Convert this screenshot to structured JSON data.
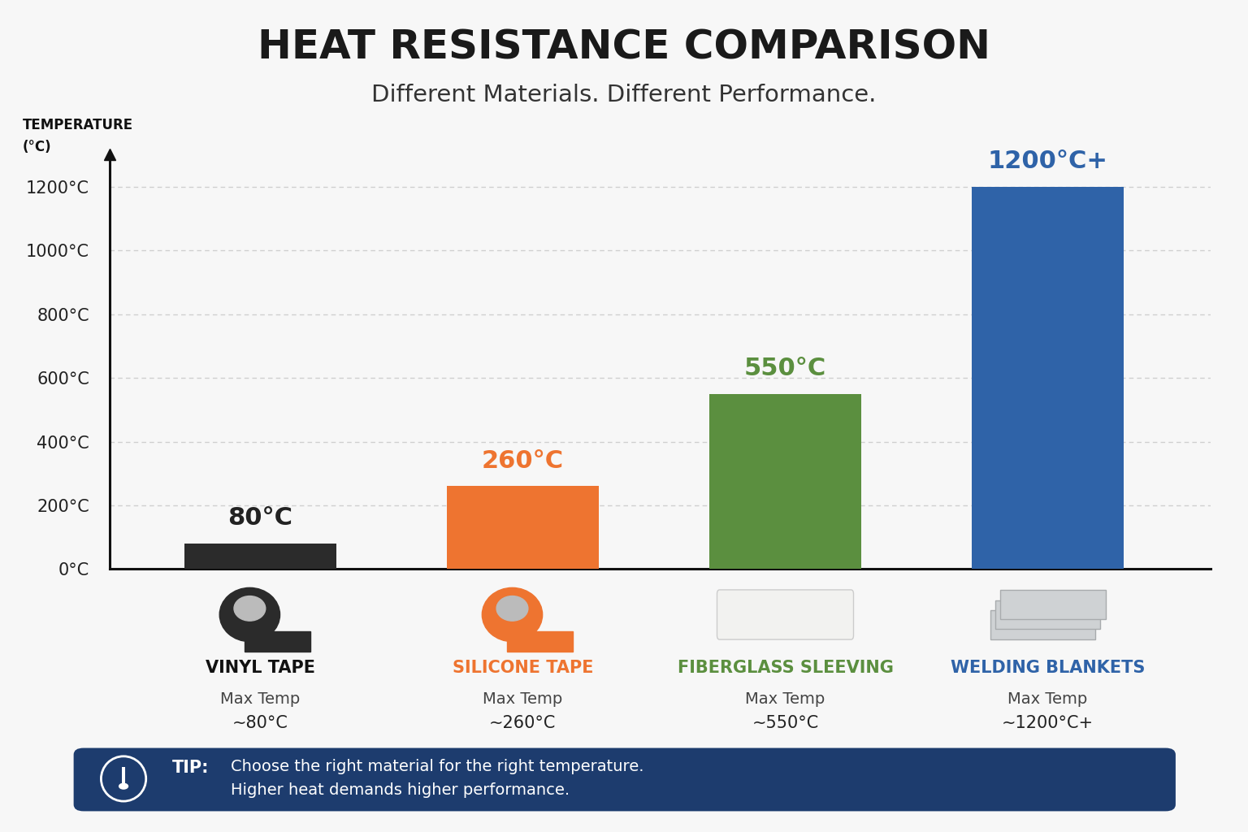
{
  "chart_data": {
    "type": "bar",
    "title": "HEAT RESISTANCE COMPARISON",
    "subtitle": "Different Materials. Different Performance.",
    "y_label": "TEMPERATURE\n(°C)",
    "categories": [
      "VINYL TAPE",
      "SILICONE TAPE",
      "FIBERGLASS SLEEVING",
      "WELDING BLANKETS"
    ],
    "values": [
      80,
      260,
      550,
      1200
    ],
    "value_labels": [
      "80°C",
      "260°C",
      "550°C",
      "1200°C+"
    ],
    "colors": [
      "#2b2b2b",
      "#ee7430",
      "#5b8f3f",
      "#2f63a8"
    ],
    "data_labels": true,
    "ylim": [
      0,
      1300
    ],
    "yticks": [
      {
        "value": 0,
        "label": "0°C"
      },
      {
        "value": 200,
        "label": "200°C"
      },
      {
        "value": 400,
        "label": "400°C"
      },
      {
        "value": 600,
        "label": "600°C"
      },
      {
        "value": 800,
        "label": "800°C"
      },
      {
        "value": 1000,
        "label": "1000°C"
      },
      {
        "value": 1200,
        "label": "1200°C"
      }
    ],
    "grid": true,
    "annotations": {
      "caption": "Max Temp",
      "captions": [
        "~80°C",
        "~260°C",
        "~550°C",
        "~1200°C+"
      ],
      "tip_label": "TIP:",
      "tip_lines": [
        "Choose the right material for the right temperature.",
        "Higher heat demands higher performance."
      ]
    }
  }
}
